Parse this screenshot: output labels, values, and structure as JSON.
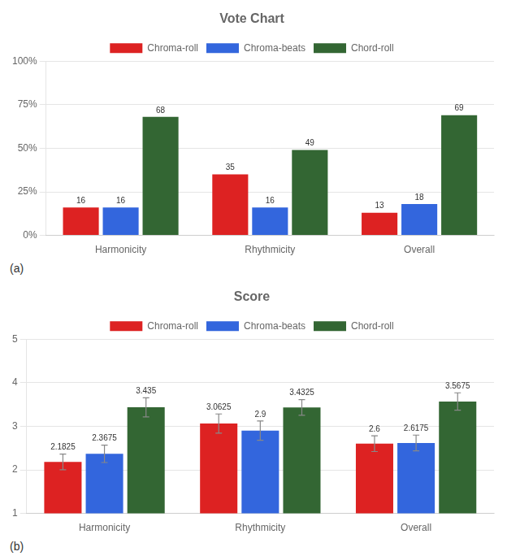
{
  "chart_data": [
    {
      "type": "bar",
      "title": "Vote Chart",
      "annotations": [
        "(a)"
      ],
      "categories": [
        "Harmonicity",
        "Rhythmicity",
        "Overall"
      ],
      "series": [
        {
          "name": "Chroma-roll",
          "color": "#dd2222",
          "values": [
            16,
            35,
            13
          ]
        },
        {
          "name": "Chroma-beats",
          "color": "#3366dd",
          "values": [
            16,
            16,
            18
          ]
        },
        {
          "name": "Chord-roll",
          "color": "#336633",
          "values": [
            68,
            49,
            69
          ]
        }
      ],
      "ylim": [
        0,
        100
      ],
      "yticks": [
        {
          "value": 0,
          "label": "0%"
        },
        {
          "value": 25,
          "label": "25%"
        },
        {
          "value": 50,
          "label": "50%"
        },
        {
          "value": 75,
          "label": "75%"
        },
        {
          "value": 100,
          "label": "100%"
        }
      ],
      "grid": true,
      "legend": "top",
      "data_labels": true
    },
    {
      "type": "bar",
      "title": "Score",
      "annotations": [
        "(b)"
      ],
      "categories": [
        "Harmonicity",
        "Rhythmicity",
        "Overall"
      ],
      "series": [
        {
          "name": "Chroma-roll",
          "color": "#dd2222",
          "values": [
            2.1825,
            3.0625,
            2.6
          ],
          "errors": [
            0.18,
            0.22,
            0.18
          ]
        },
        {
          "name": "Chroma-beats",
          "color": "#3366dd",
          "values": [
            2.3675,
            2.9,
            2.6175
          ],
          "errors": [
            0.2,
            0.22,
            0.18
          ]
        },
        {
          "name": "Chord-roll",
          "color": "#336633",
          "values": [
            3.435,
            3.4325,
            3.5675
          ],
          "errors": [
            0.22,
            0.18,
            0.2
          ]
        }
      ],
      "ylim": [
        1,
        5
      ],
      "yticks": [
        1,
        2,
        3,
        4,
        5
      ],
      "grid": true,
      "legend": "top",
      "data_labels": true
    }
  ]
}
